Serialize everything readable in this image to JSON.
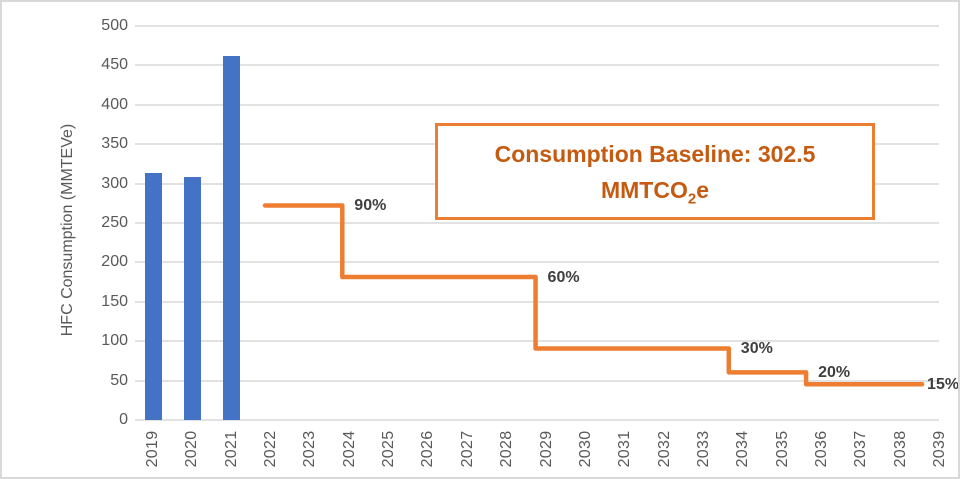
{
  "colors": {
    "bar": "#4472C4",
    "step_line": "#ED7D31",
    "grid": "#E2E2E2",
    "axis_text": "#595959",
    "percent_label_text": "#3F3F3F",
    "annotation_border": "#ED7D31",
    "annotation_text": "#C55A11"
  },
  "annotation_box": {
    "line1": "Consumption Baseline: 302.5",
    "line2_main": "MMTCO",
    "line2_sub": "2",
    "line2_tail": "e"
  },
  "chart_data": {
    "type": "combo-bar-step-line",
    "title": "",
    "xlabel": "",
    "ylabel": "HFC Consumption (MMTEVe)",
    "ylim": [
      0,
      500
    ],
    "y_ticks": [
      0,
      50,
      100,
      150,
      200,
      250,
      300,
      350,
      400,
      450,
      500
    ],
    "x_ticks": [
      "2019",
      "2020",
      "2021",
      "2022",
      "2023",
      "2024",
      "2025",
      "2026",
      "2027",
      "2028",
      "2029",
      "2030",
      "2031",
      "2032",
      "2033",
      "2034",
      "2035",
      "2036",
      "2037",
      "2038",
      "2039"
    ],
    "grid": "horizontal",
    "legend": "none",
    "bar_series": {
      "color": "#4472C4",
      "points": [
        {
          "year": "2019",
          "value": 313
        },
        {
          "year": "2020",
          "value": 308
        },
        {
          "year": "2021",
          "value": 462
        }
      ]
    },
    "step_line_series": {
      "color": "#ED7D31",
      "baseline_value": 302.5,
      "steps": [
        {
          "from_year": 2022,
          "to_year": 2024,
          "label": "90%",
          "percent_of_baseline": 90,
          "value": 272.25
        },
        {
          "from_year": 2024,
          "to_year": 2029,
          "label": "60%",
          "percent_of_baseline": 60,
          "value": 181.5
        },
        {
          "from_year": 2029,
          "to_year": 2034,
          "label": "30%",
          "percent_of_baseline": 30,
          "value": 90.75
        },
        {
          "from_year": 2034,
          "to_year": 2036,
          "label": "20%",
          "percent_of_baseline": 20,
          "value": 60.5
        },
        {
          "from_year": 2036,
          "to_year": 2039,
          "label": "15%",
          "percent_of_baseline": 15,
          "value": 45.375
        }
      ]
    },
    "annotation": "Consumption Baseline: 302.5 MMTCO2e"
  }
}
